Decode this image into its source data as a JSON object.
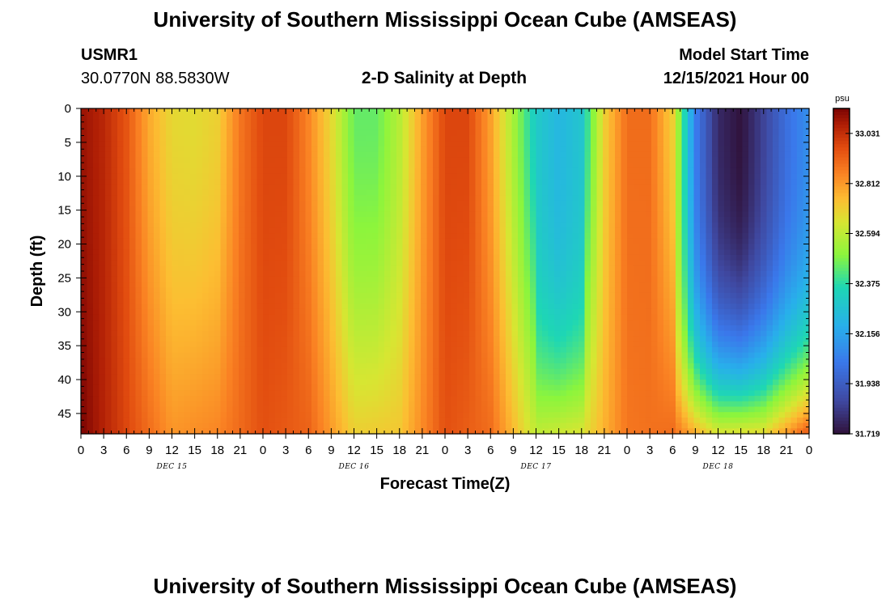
{
  "header": {
    "title": "University of Southern Mississippi Ocean Cube (AMSEAS)",
    "station_id": "USMR1",
    "coordinates": "30.0770N  88.5830W",
    "plot_title": "2-D Salinity at Depth",
    "model_start_label": "Model Start Time",
    "model_start_value": "12/15/2021 Hour 00"
  },
  "footer": {
    "title": "University of Southern Mississippi Ocean Cube (AMSEAS)"
  },
  "chart_data": {
    "type": "heatmap",
    "title": "2-D Salinity at Depth",
    "xlabel": "Forecast Time(Z)",
    "ylabel": "Depth (ft)",
    "x_range_hours": [
      0,
      96
    ],
    "ylim": [
      0,
      48
    ],
    "x_tick_labels": [
      "0",
      "3",
      "6",
      "9",
      "12",
      "15",
      "18",
      "21",
      "0",
      "3",
      "6",
      "9",
      "12",
      "15",
      "18",
      "21",
      "0",
      "3",
      "6",
      "9",
      "12",
      "15",
      "18",
      "21",
      "0",
      "3",
      "6",
      "9",
      "12",
      "15",
      "18",
      "21",
      "0"
    ],
    "y_ticks": [
      0,
      5,
      10,
      15,
      20,
      25,
      30,
      35,
      40,
      45
    ],
    "day_labels": [
      {
        "label": "DEC 15",
        "hour": 12
      },
      {
        "label": "DEC 16",
        "hour": 36
      },
      {
        "label": "DEC 17",
        "hour": 60
      },
      {
        "label": "DEC 18",
        "hour": 84
      }
    ],
    "colorbar": {
      "unit": "psu",
      "min": 31.719,
      "max": 33.14,
      "tick_labels": [
        "33.031",
        "32.812",
        "32.594",
        "32.375",
        "32.156",
        "31.938",
        "31.719"
      ],
      "tick_values": [
        33.031,
        32.812,
        32.594,
        32.375,
        32.156,
        31.938,
        31.719
      ]
    },
    "surface_salinity_by_hour": [
      {
        "hour": 0,
        "psu": 33.1
      },
      {
        "hour": 3,
        "psu": 33.05
      },
      {
        "hour": 6,
        "psu": 32.95
      },
      {
        "hour": 9,
        "psu": 32.78
      },
      {
        "hour": 12,
        "psu": 32.68
      },
      {
        "hour": 15,
        "psu": 32.67
      },
      {
        "hour": 18,
        "psu": 32.7
      },
      {
        "hour": 21,
        "psu": 32.88
      },
      {
        "hour": 24,
        "psu": 32.98
      },
      {
        "hour": 27,
        "psu": 32.98
      },
      {
        "hour": 30,
        "psu": 32.85
      },
      {
        "hour": 33,
        "psu": 32.68
      },
      {
        "hour": 36,
        "psu": 32.45
      },
      {
        "hour": 39,
        "psu": 32.45
      },
      {
        "hour": 42,
        "psu": 32.58
      },
      {
        "hour": 45,
        "psu": 32.8
      },
      {
        "hour": 48,
        "psu": 32.98
      },
      {
        "hour": 51,
        "psu": 32.98
      },
      {
        "hour": 54,
        "psu": 32.8
      },
      {
        "hour": 57,
        "psu": 32.55
      },
      {
        "hour": 60,
        "psu": 32.3
      },
      {
        "hour": 63,
        "psu": 32.22
      },
      {
        "hour": 66,
        "psu": 32.28
      },
      {
        "hour": 69,
        "psu": 32.7
      },
      {
        "hour": 72,
        "psu": 32.9
      },
      {
        "hour": 75,
        "psu": 32.9
      },
      {
        "hour": 78,
        "psu": 32.7
      },
      {
        "hour": 81,
        "psu": 32.05
      },
      {
        "hour": 84,
        "psu": 31.78
      },
      {
        "hour": 87,
        "psu": 31.72
      },
      {
        "hour": 90,
        "psu": 31.85
      },
      {
        "hour": 93,
        "psu": 32.0
      },
      {
        "hour": 96,
        "psu": 32.1
      }
    ],
    "bottom_salinity_by_hour": [
      {
        "hour": 0,
        "psu": 33.14
      },
      {
        "hour": 6,
        "psu": 32.98
      },
      {
        "hour": 12,
        "psu": 32.82
      },
      {
        "hour": 18,
        "psu": 32.85
      },
      {
        "hour": 24,
        "psu": 32.96
      },
      {
        "hour": 30,
        "psu": 32.92
      },
      {
        "hour": 36,
        "psu": 32.7
      },
      {
        "hour": 42,
        "psu": 32.72
      },
      {
        "hour": 48,
        "psu": 32.96
      },
      {
        "hour": 54,
        "psu": 32.9
      },
      {
        "hour": 60,
        "psu": 32.6
      },
      {
        "hour": 66,
        "psu": 32.65
      },
      {
        "hour": 72,
        "psu": 32.88
      },
      {
        "hour": 78,
        "psu": 32.9
      },
      {
        "hour": 84,
        "psu": 32.65
      },
      {
        "hour": 90,
        "psu": 32.68
      },
      {
        "hour": 96,
        "psu": 32.95
      }
    ]
  }
}
